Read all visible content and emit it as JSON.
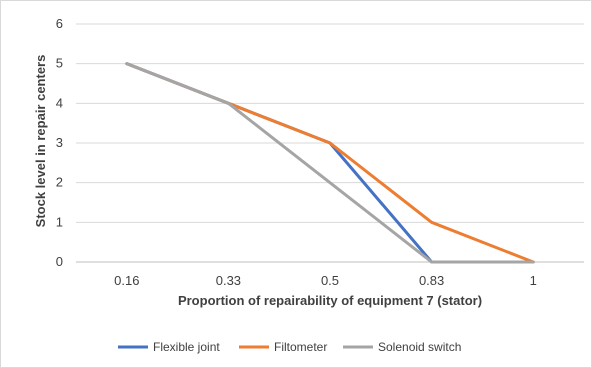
{
  "chart_data": {
    "type": "line",
    "title": "",
    "xlabel": "Proportion  of repairability of equipment 7 (stator)",
    "ylabel": "Stock level in repair centers",
    "categories": [
      "0.16",
      "0.33",
      "0.5",
      "0.83",
      "1"
    ],
    "ylim": [
      0,
      6
    ],
    "yticks": [
      "0",
      "1",
      "2",
      "3",
      "4",
      "5",
      "6"
    ],
    "grid": true,
    "legend_position": "bottom",
    "series": [
      {
        "name": "Flexible joint",
        "color": "#4472c4",
        "values": [
          5,
          4,
          3,
          0,
          0
        ]
      },
      {
        "name": "Filtometer",
        "color": "#ed7d31",
        "values": [
          5,
          4,
          3,
          1,
          0
        ]
      },
      {
        "name": "Solenoid switch",
        "color": "#a5a5a5",
        "values": [
          5,
          4,
          2,
          0,
          0
        ]
      }
    ]
  }
}
